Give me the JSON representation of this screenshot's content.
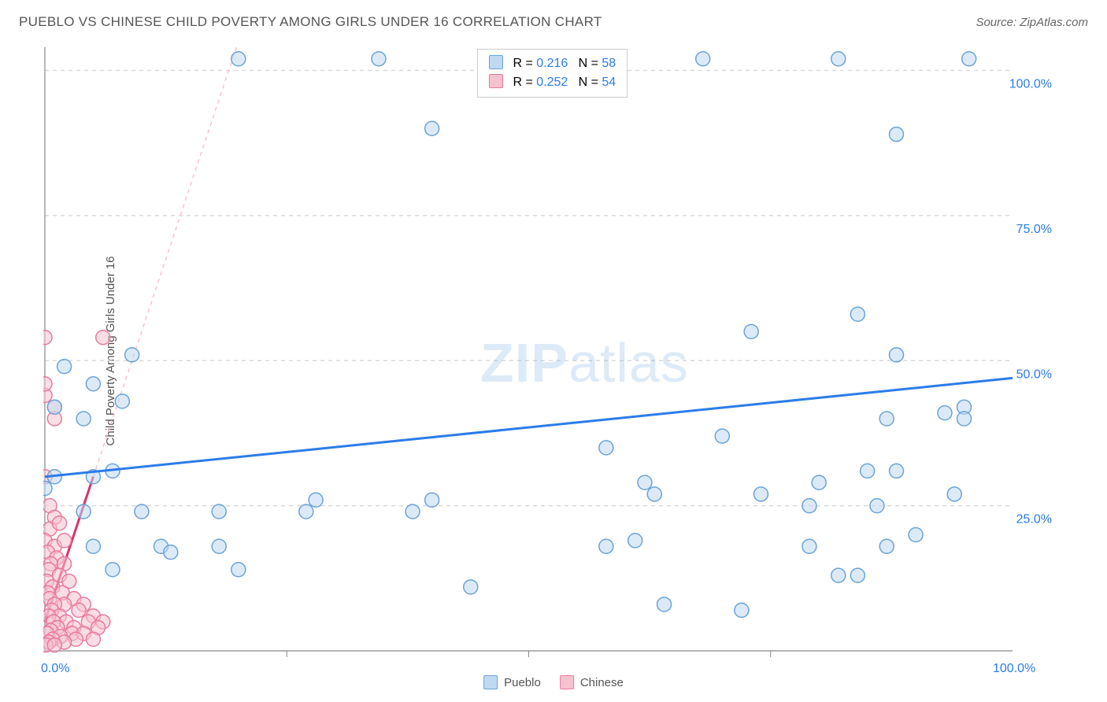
{
  "title": "PUEBLO VS CHINESE CHILD POVERTY AMONG GIRLS UNDER 16 CORRELATION CHART",
  "source_label": "Source: ZipAtlas.com",
  "ylabel": "Child Poverty Among Girls Under 16",
  "watermark_a": "ZIP",
  "watermark_b": "atlas",
  "chart": {
    "type": "scatter",
    "xlim": [
      0,
      100
    ],
    "ylim": [
      0,
      104
    ],
    "x_ticks": [
      0,
      100
    ],
    "x_tick_labels": [
      "0.0%",
      "100.0%"
    ],
    "y_ticks": [
      25,
      50,
      75,
      100
    ],
    "y_tick_labels": [
      "25.0%",
      "50.0%",
      "75.0%",
      "100.0%"
    ],
    "x_minor_ticks": [
      25,
      50,
      75
    ],
    "grid_color": "#d9d9d9",
    "axis_color": "#888888",
    "background": "#ffffff",
    "axis_label_color": "#2b7ce9",
    "label_fontsize": 15
  },
  "series": {
    "pueblo": {
      "label": "Pueblo",
      "fill": "#bfd9f2",
      "stroke": "#6aa3d8",
      "fill_opacity": 0.55,
      "marker_radius": 9,
      "trend": {
        "y_at_x0": 30,
        "y_at_x100": 47,
        "color": "#2b7ce9",
        "width": 3,
        "dash": "none"
      },
      "points": [
        [
          20,
          102
        ],
        [
          34.5,
          102
        ],
        [
          68,
          102
        ],
        [
          82,
          102
        ],
        [
          95.5,
          102
        ],
        [
          40,
          90
        ],
        [
          88,
          89
        ],
        [
          9,
          51
        ],
        [
          73,
          55
        ],
        [
          84,
          58
        ],
        [
          88,
          51
        ],
        [
          2,
          49
        ],
        [
          5,
          46
        ],
        [
          8,
          43
        ],
        [
          1,
          30
        ],
        [
          5,
          30
        ],
        [
          7,
          31
        ],
        [
          93,
          41
        ],
        [
          95,
          42
        ],
        [
          95,
          40
        ],
        [
          87,
          40
        ],
        [
          70,
          37
        ],
        [
          58,
          35
        ],
        [
          85,
          31
        ],
        [
          88,
          31
        ],
        [
          62,
          29
        ],
        [
          80,
          29
        ],
        [
          63,
          27
        ],
        [
          74,
          27
        ],
        [
          94,
          27
        ],
        [
          79,
          25
        ],
        [
          86,
          25
        ],
        [
          4,
          24
        ],
        [
          10,
          24
        ],
        [
          18,
          24
        ],
        [
          27,
          24
        ],
        [
          38,
          24
        ],
        [
          5,
          18
        ],
        [
          12,
          18
        ],
        [
          18,
          18
        ],
        [
          58,
          18
        ],
        [
          79,
          18
        ],
        [
          87,
          18
        ],
        [
          44,
          11
        ],
        [
          84,
          13
        ],
        [
          82,
          13
        ],
        [
          28,
          26
        ],
        [
          1,
          42
        ],
        [
          4,
          40
        ],
        [
          0,
          28
        ],
        [
          20,
          14
        ],
        [
          7,
          14
        ],
        [
          40,
          26
        ],
        [
          64,
          8
        ],
        [
          72,
          7
        ],
        [
          61,
          19
        ],
        [
          90,
          20
        ],
        [
          13,
          17
        ]
      ]
    },
    "chinese": {
      "label": "Chinese",
      "fill": "#f6c2cf",
      "stroke": "#e879a0",
      "fill_opacity": 0.55,
      "marker_radius": 9,
      "trend": {
        "y_at_x0": 5,
        "y_at_x5": 30,
        "color": "#d6336c",
        "width": 3,
        "dash_ext_color": "#f6c2cf",
        "dash_ext": "5,5"
      },
      "points": [
        [
          0,
          54
        ],
        [
          6,
          54
        ],
        [
          0,
          44
        ],
        [
          0,
          46
        ],
        [
          1,
          40
        ],
        [
          1,
          42
        ],
        [
          0,
          30
        ],
        [
          0.5,
          25
        ],
        [
          1,
          23
        ],
        [
          0.5,
          21
        ],
        [
          1.5,
          22
        ],
        [
          0,
          19
        ],
        [
          1,
          18
        ],
        [
          2,
          19
        ],
        [
          0.3,
          17
        ],
        [
          1.2,
          16
        ],
        [
          0.6,
          15
        ],
        [
          2,
          15
        ],
        [
          0.4,
          14
        ],
        [
          1.5,
          13
        ],
        [
          0.2,
          12
        ],
        [
          2.5,
          12
        ],
        [
          0.8,
          11
        ],
        [
          1.8,
          10
        ],
        [
          0.3,
          10
        ],
        [
          3,
          9
        ],
        [
          0.5,
          9
        ],
        [
          2,
          8
        ],
        [
          4,
          8
        ],
        [
          1,
          8
        ],
        [
          0.7,
          7
        ],
        [
          3.5,
          7
        ],
        [
          1.5,
          6
        ],
        [
          5,
          6
        ],
        [
          0.4,
          6
        ],
        [
          2.2,
          5
        ],
        [
          4.5,
          5
        ],
        [
          0.9,
          5
        ],
        [
          6,
          5
        ],
        [
          1.3,
          4
        ],
        [
          3,
          4
        ],
        [
          5.5,
          4
        ],
        [
          0.6,
          3.5
        ],
        [
          2.8,
          3
        ],
        [
          0.2,
          3
        ],
        [
          4,
          3
        ],
        [
          1.6,
          2.5
        ],
        [
          0.8,
          2
        ],
        [
          3.2,
          2
        ],
        [
          5,
          2
        ],
        [
          0.4,
          1.5
        ],
        [
          2,
          1.5
        ],
        [
          0.1,
          1
        ],
        [
          1,
          1
        ]
      ]
    }
  },
  "stats": {
    "rows": [
      {
        "swatch_fill": "#bfd9f2",
        "swatch_stroke": "#6aa3d8",
        "r_label": "R =",
        "r_val": "0.216",
        "n_label": "N =",
        "n_val": "58"
      },
      {
        "swatch_fill": "#f6c2cf",
        "swatch_stroke": "#e879a0",
        "r_label": "R =",
        "r_val": "0.252",
        "n_label": "N =",
        "n_val": "54"
      }
    ]
  },
  "legend": {
    "items": [
      {
        "label": "Pueblo",
        "fill": "#bfd9f2",
        "stroke": "#6aa3d8"
      },
      {
        "label": "Chinese",
        "fill": "#f6c2cf",
        "stroke": "#e879a0"
      }
    ]
  }
}
